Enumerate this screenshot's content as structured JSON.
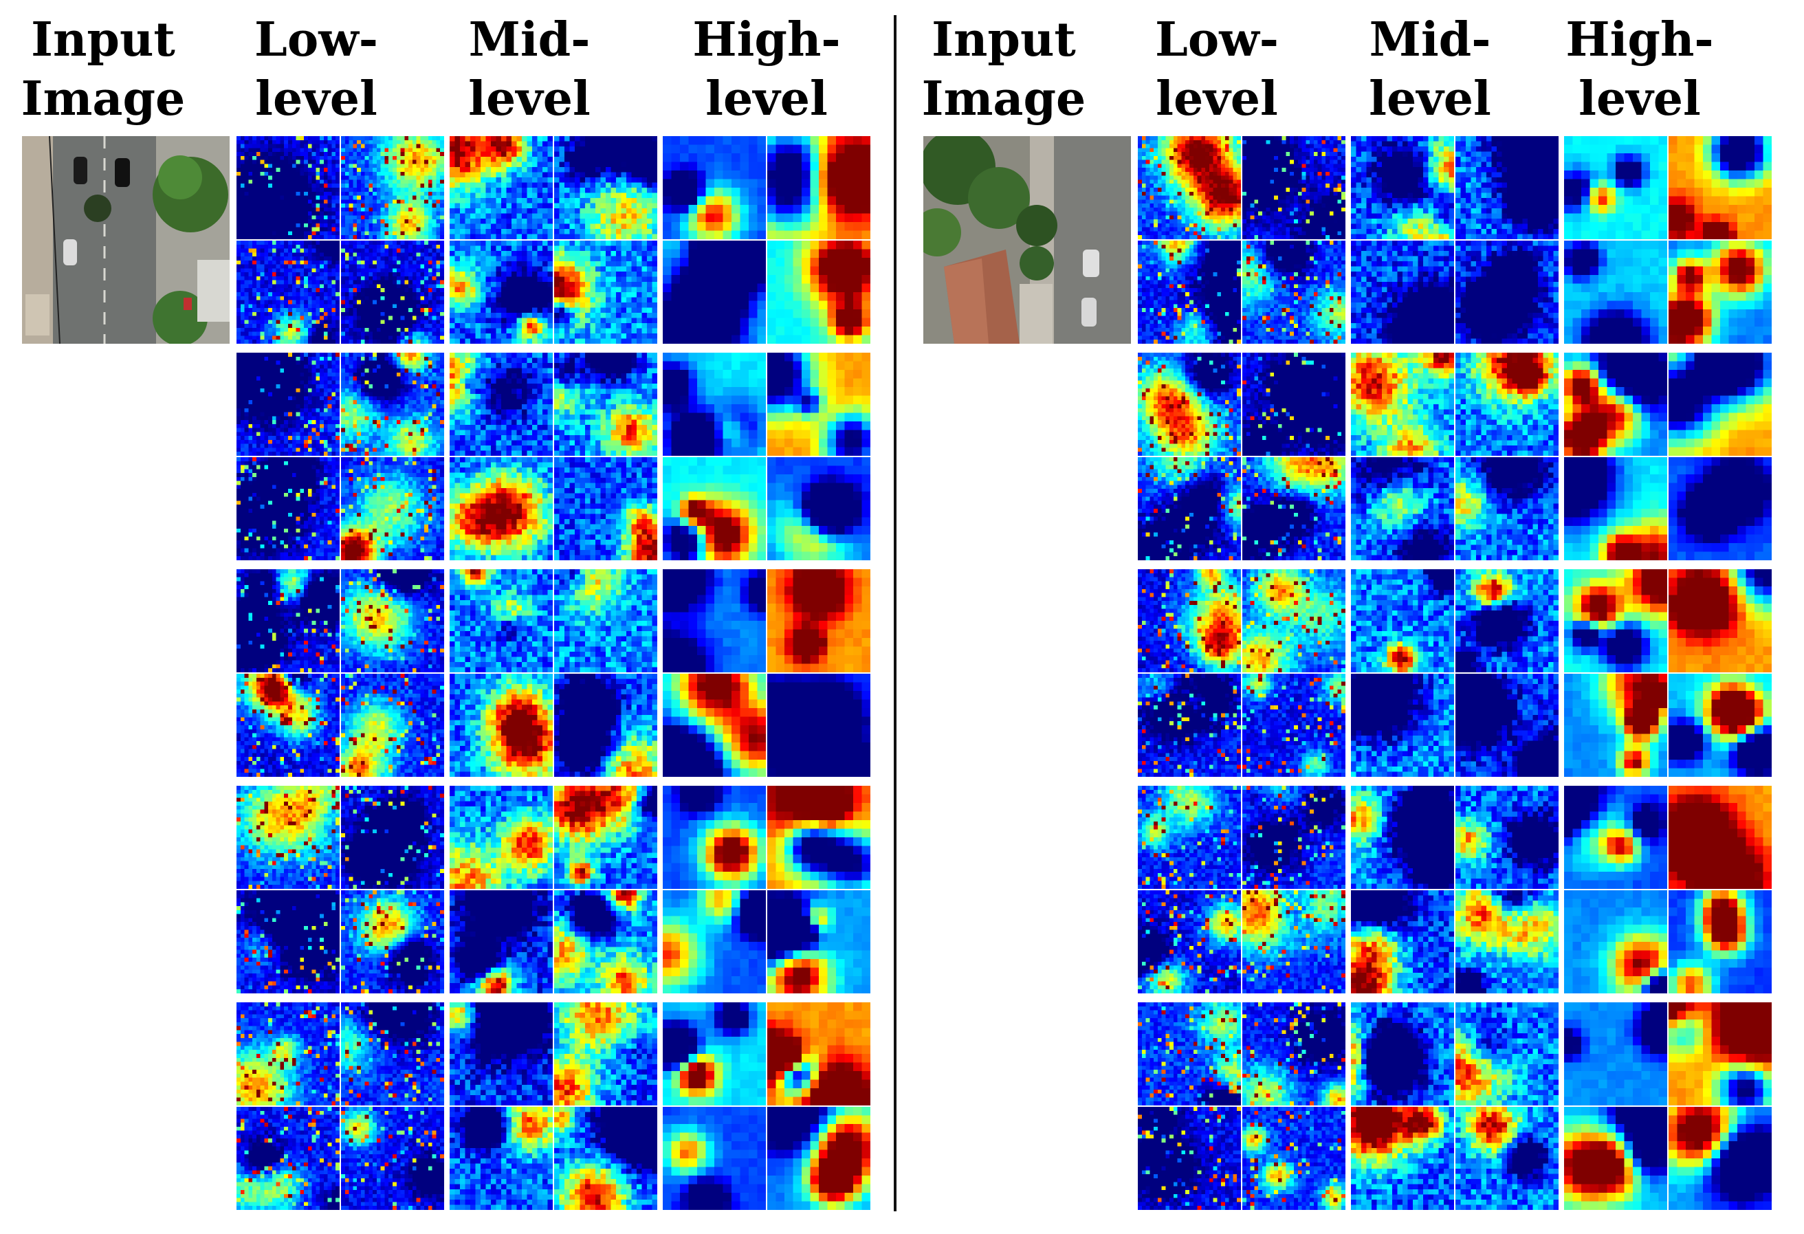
{
  "figure": {
    "panels": [
      {
        "id": "left",
        "headers": {
          "input": [
            "Input",
            "Image"
          ],
          "low": [
            "Low-",
            "level"
          ],
          "mid": [
            "Mid-",
            "level"
          ],
          "high": [
            "High-",
            "level"
          ]
        },
        "input_scene": "street"
      },
      {
        "id": "right",
        "headers": {
          "input": [
            "Input",
            "Image"
          ],
          "low": [
            "Low-",
            "level"
          ],
          "mid": [
            "Mid-",
            "level"
          ],
          "high": [
            "High-",
            "level"
          ]
        },
        "input_scene": "rooftop"
      }
    ],
    "rows_per_panel": 5,
    "maps_per_block": 4,
    "colormap": [
      "#00007f",
      "#0000ff",
      "#0080ff",
      "#00ffff",
      "#80ff80",
      "#ffff00",
      "#ff8000",
      "#ff0000",
      "#7f0000"
    ],
    "divider_color": "#111111"
  }
}
